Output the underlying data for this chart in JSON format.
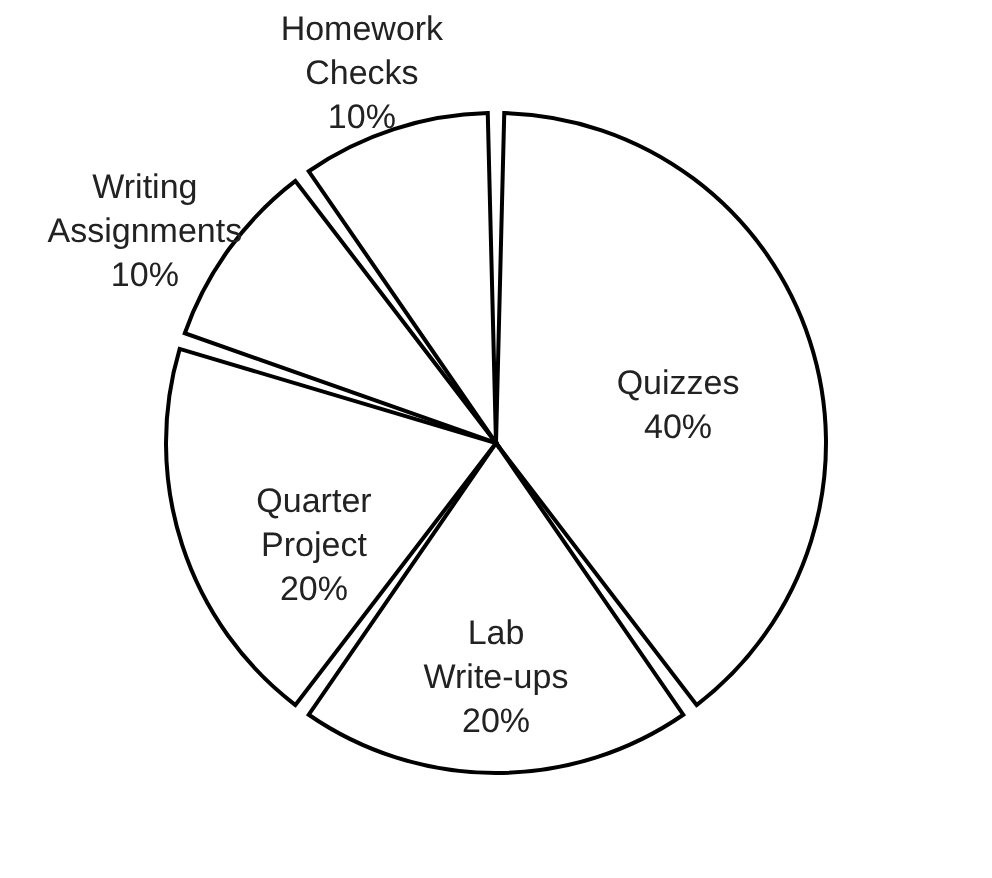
{
  "chart_data": {
    "type": "pie",
    "categories": [
      "Quizzes",
      "Lab Write-ups",
      "Quarter Project",
      "Writing Assignments",
      "Homework Checks"
    ],
    "values": [
      40,
      20,
      20,
      10,
      10
    ],
    "value_labels": [
      "40%",
      "20%",
      "20%",
      "10%",
      "10%"
    ],
    "colors": [
      "#ffffff",
      "#ffffff",
      "#ffffff",
      "#ffffff",
      "#ffffff"
    ],
    "legend": false
  }
}
